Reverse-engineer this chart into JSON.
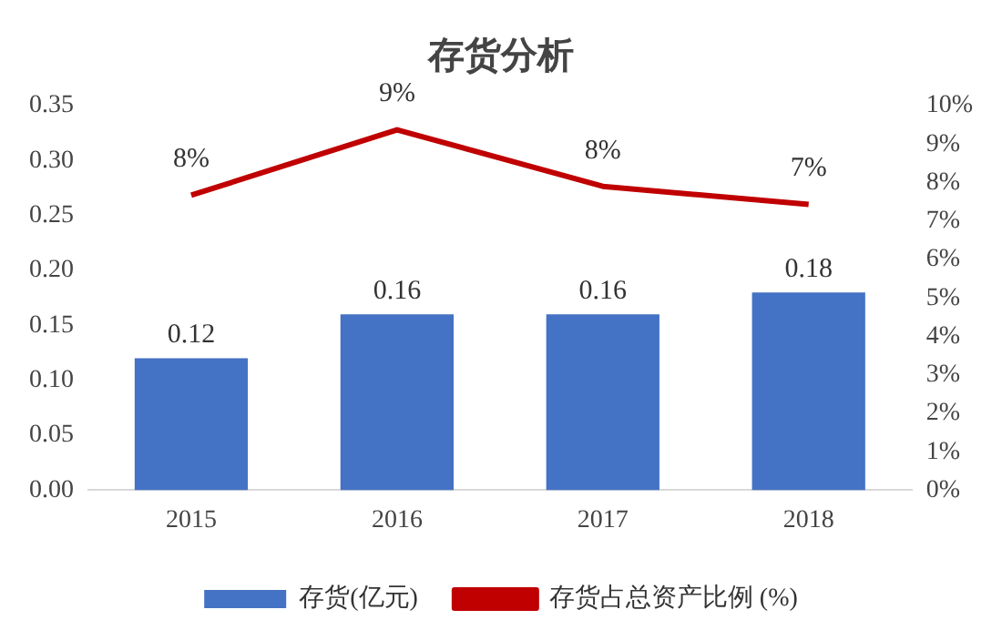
{
  "chart_data": {
    "type": "bar",
    "title": "存货分析",
    "categories": [
      "2015",
      "2016",
      "2017",
      "2018"
    ],
    "series": [
      {
        "name": "存货(亿元)",
        "color": "#4472c4",
        "values": [
          0.12,
          0.16,
          0.16,
          0.18
        ],
        "value_labels": [
          "0.12",
          "0.16",
          "0.16",
          "0.18"
        ]
      },
      {
        "name": "存货占总资产比例 (%)",
        "type": "line",
        "axis": "y2",
        "color": "#c00000",
        "values": [
          7.67,
          9.37,
          7.9,
          7.43
        ],
        "value_labels": [
          "8%",
          "9%",
          "8%",
          "7%"
        ],
        "marker": "none"
      }
    ],
    "ylim": [
      0,
      0.35
    ],
    "yticks": [
      {
        "value": 0,
        "label": "0.00"
      },
      0.05,
      {
        "value": 0.1,
        "label": "0.10"
      },
      0.15,
      {
        "value": 0.2,
        "label": "0.20"
      },
      0.25,
      {
        "value": 0.3,
        "label": "0.30"
      },
      0.35
    ],
    "y2lim": [
      0,
      10
    ],
    "y2ticks": [
      {
        "value": 0,
        "label": "0%"
      },
      {
        "value": 1,
        "label": "1%"
      },
      {
        "value": 2,
        "label": "2%"
      },
      {
        "value": 3,
        "label": "3%"
      },
      {
        "value": 4,
        "label": "4%"
      },
      {
        "value": 5,
        "label": "5%"
      },
      {
        "value": 6,
        "label": "6%"
      },
      {
        "value": 7,
        "label": "7%"
      },
      {
        "value": 8,
        "label": "8%"
      },
      {
        "value": 9,
        "label": "9%"
      },
      {
        "value": 10,
        "label": "10%"
      }
    ],
    "grid": false,
    "legend": "bottom"
  }
}
